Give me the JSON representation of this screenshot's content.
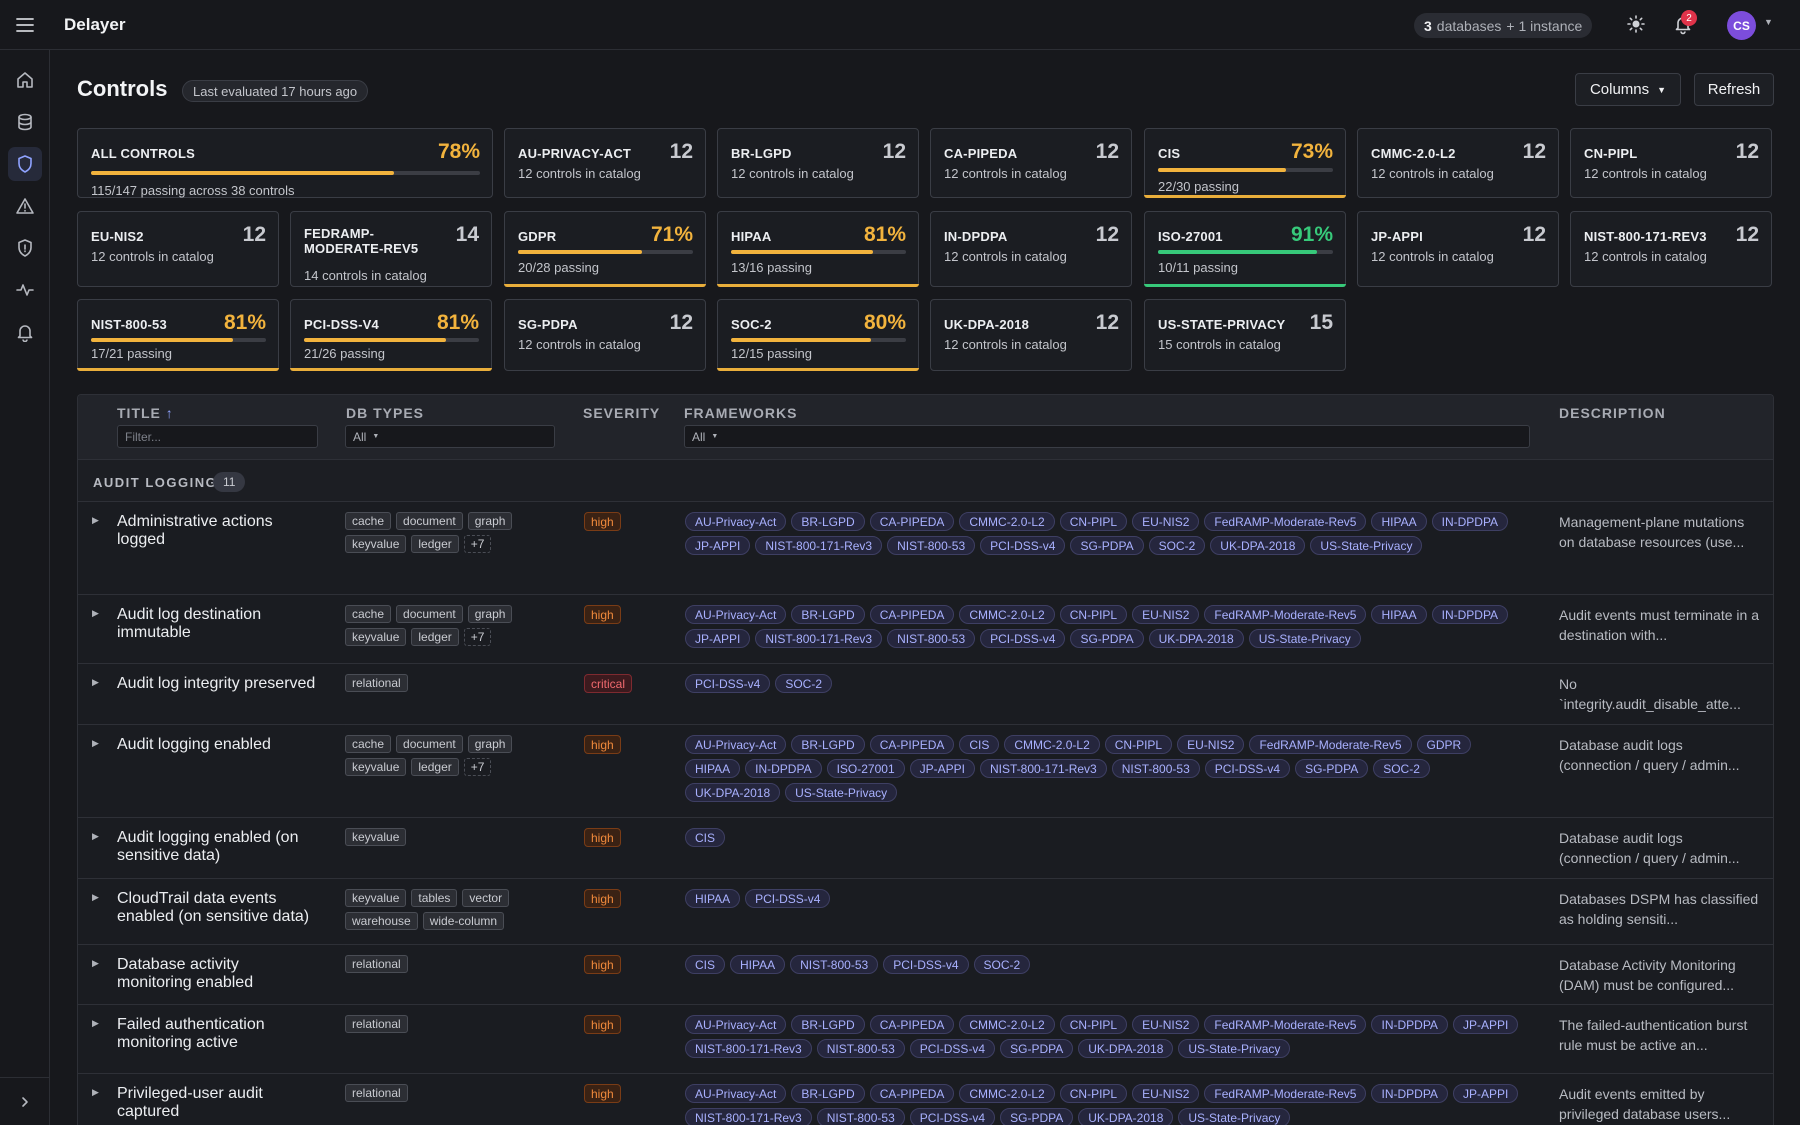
{
  "app": {
    "title": "Delayer"
  },
  "topbar": {
    "db_count": "3",
    "db_text": "databases",
    "instance_text": "+ 1 instance",
    "notification_count": "2",
    "avatar_initials": "CS"
  },
  "page": {
    "title": "Controls",
    "last_evaluated": "Last evaluated 17 hours ago",
    "columns_label": "Columns",
    "refresh_label": "Refresh"
  },
  "cards": [
    {
      "name": "ALL CONTROLS",
      "value": "78%",
      "sub": "115/147 passing across 38 controls",
      "progress": 0.78
    },
    {
      "name": "AU-PRIVACY-ACT",
      "value": "12",
      "sub": "12 controls in catalog"
    },
    {
      "name": "BR-LGPD",
      "value": "12",
      "sub": "12 controls in catalog"
    },
    {
      "name": "CA-PIPEDA",
      "value": "12",
      "sub": "12 controls in catalog"
    },
    {
      "name": "CIS",
      "value": "73%",
      "sub": "22/30 passing",
      "progress": 0.73
    },
    {
      "name": "CMMC-2.0-L2",
      "value": "12",
      "sub": "12 controls in catalog"
    },
    {
      "name": "CN-PIPL",
      "value": "12",
      "sub": "12 controls in catalog"
    },
    {
      "name": "EU-NIS2",
      "value": "12",
      "sub": "12 controls in catalog"
    },
    {
      "name": "FEDRAMP-\nMODERATE-REV5",
      "value": "14",
      "sub": "14 controls in catalog"
    },
    {
      "name": "GDPR",
      "value": "71%",
      "sub": "20/28 passing",
      "progress": 0.71
    },
    {
      "name": "HIPAA",
      "value": "81%",
      "sub": "13/16 passing",
      "progress": 0.81
    },
    {
      "name": "IN-DPDPA",
      "value": "12",
      "sub": "12 controls in catalog"
    },
    {
      "name": "ISO-27001",
      "value": "91%",
      "sub": "10/11 passing",
      "progress": 0.91
    },
    {
      "name": "JP-APPI",
      "value": "12",
      "sub": "12 controls in catalog"
    },
    {
      "name": "NIST-800-171-REV3",
      "value": "12",
      "sub": "12 controls in catalog"
    },
    {
      "name": "NIST-800-53",
      "value": "81%",
      "sub": "17/21 passing",
      "progress": 0.81
    },
    {
      "name": "PCI-DSS-V4",
      "value": "81%",
      "sub": "21/26 passing",
      "progress": 0.81
    },
    {
      "name": "SG-PDPA",
      "value": "12",
      "sub": "12 controls in catalog"
    },
    {
      "name": "SOC-2",
      "value": "80%",
      "sub": "12/15 passing",
      "progress": 0.8
    },
    {
      "name": "UK-DPA-2018",
      "value": "12",
      "sub": "12 controls in catalog"
    },
    {
      "name": "US-STATE-PRIVACY",
      "value": "15",
      "sub": "15 controls in catalog"
    }
  ],
  "table": {
    "headers": {
      "title": "TITLE",
      "sort_arrow": "↑",
      "db_types": "DB TYPES",
      "severity": "SEVERITY",
      "frameworks": "FRAMEWORKS",
      "description": "DESCRIPTION"
    },
    "filters": {
      "title_placeholder": "Filter...",
      "db_types": "All",
      "frameworks": "All"
    },
    "group": {
      "label": "AUDIT LOGGING",
      "count": "11"
    },
    "rows": [
      {
        "title": "Administrative actions logged",
        "db_types": [
          "cache",
          "document",
          "graph",
          "keyvalue",
          "ledger",
          "+7"
        ],
        "severity": "high",
        "frameworks": [
          "AU-Privacy-Act",
          "BR-LGPD",
          "CA-PIPEDA",
          "CMMC-2.0-L2",
          "CN-PIPL",
          "EU-NIS2",
          "FedRAMP-Moderate-Rev5",
          "HIPAA",
          "IN-DPDPA",
          "JP-APPI",
          "NIST-800-171-Rev3",
          "NIST-800-53",
          "PCI-DSS-v4",
          "SG-PDPA",
          "SOC-2",
          "UK-DPA-2018",
          "US-State-Privacy"
        ],
        "description": "Management-plane mutations on database resources (use..."
      },
      {
        "title": "Audit log destination immutable",
        "db_types": [
          "cache",
          "document",
          "graph",
          "keyvalue",
          "ledger",
          "+7"
        ],
        "severity": "high",
        "frameworks": [
          "AU-Privacy-Act",
          "BR-LGPD",
          "CA-PIPEDA",
          "CMMC-2.0-L2",
          "CN-PIPL",
          "EU-NIS2",
          "FedRAMP-Moderate-Rev5",
          "HIPAA",
          "IN-DPDPA",
          "JP-APPI",
          "NIST-800-171-Rev3",
          "NIST-800-53",
          "PCI-DSS-v4",
          "SG-PDPA",
          "UK-DPA-2018",
          "US-State-Privacy"
        ],
        "description": "Audit events must terminate in a destination with..."
      },
      {
        "title": "Audit log integrity preserved",
        "db_types": [
          "relational"
        ],
        "severity": "critical",
        "frameworks": [
          "PCI-DSS-v4",
          "SOC-2"
        ],
        "description": "No `integrity.audit_disable_atte..."
      },
      {
        "title": "Audit logging enabled",
        "db_types": [
          "cache",
          "document",
          "graph",
          "keyvalue",
          "ledger",
          "+7"
        ],
        "severity": "high",
        "frameworks": [
          "AU-Privacy-Act",
          "BR-LGPD",
          "CA-PIPEDA",
          "CIS",
          "CMMC-2.0-L2",
          "CN-PIPL",
          "EU-NIS2",
          "FedRAMP-Moderate-Rev5",
          "GDPR",
          "HIPAA",
          "IN-DPDPA",
          "ISO-27001",
          "JP-APPI",
          "NIST-800-171-Rev3",
          "NIST-800-53",
          "PCI-DSS-v4",
          "SG-PDPA",
          "SOC-2",
          "UK-DPA-2018",
          "US-State-Privacy"
        ],
        "description": "Database audit logs (connection / query / admin..."
      },
      {
        "title": "Audit logging enabled (on sensitive data)",
        "db_types": [
          "keyvalue"
        ],
        "severity": "high",
        "frameworks": [
          "CIS"
        ],
        "description": "Database audit logs (connection / query / admin..."
      },
      {
        "title": "CloudTrail data events enabled (on sensitive data)",
        "db_types": [
          "keyvalue",
          "tables",
          "vector",
          "warehouse",
          "wide-column"
        ],
        "severity": "high",
        "frameworks": [
          "HIPAA",
          "PCI-DSS-v4"
        ],
        "description": "Databases DSPM has classified as holding sensiti..."
      },
      {
        "title": "Database activity monitoring enabled",
        "db_types": [
          "relational"
        ],
        "severity": "high",
        "frameworks": [
          "CIS",
          "HIPAA",
          "NIST-800-53",
          "PCI-DSS-v4",
          "SOC-2"
        ],
        "description": "Database Activity Monitoring (DAM) must be configured..."
      },
      {
        "title": "Failed authentication monitoring active",
        "db_types": [
          "relational"
        ],
        "severity": "high",
        "frameworks": [
          "AU-Privacy-Act",
          "BR-LGPD",
          "CA-PIPEDA",
          "CMMC-2.0-L2",
          "CN-PIPL",
          "EU-NIS2",
          "FedRAMP-Moderate-Rev5",
          "IN-DPDPA",
          "JP-APPI",
          "NIST-800-171-Rev3",
          "NIST-800-53",
          "PCI-DSS-v4",
          "SG-PDPA",
          "UK-DPA-2018",
          "US-State-Privacy"
        ],
        "description": "The failed-authentication burst rule must be active an..."
      },
      {
        "title": "Privileged-user audit captured",
        "db_types": [
          "relational"
        ],
        "severity": "high",
        "frameworks": [
          "AU-Privacy-Act",
          "BR-LGPD",
          "CA-PIPEDA",
          "CMMC-2.0-L2",
          "CN-PIPL",
          "EU-NIS2",
          "FedRAMP-Moderate-Rev5",
          "IN-DPDPA",
          "JP-APPI",
          "NIST-800-171-Rev3",
          "NIST-800-53",
          "PCI-DSS-v4",
          "SG-PDPA",
          "UK-DPA-2018",
          "US-State-Privacy"
        ],
        "description": "Audit events emitted by privileged database users..."
      }
    ]
  },
  "icons": {
    "menu": "hamburger-icon",
    "theme": "sun-icon",
    "notifications": "bell-icon",
    "avatar_caret": "chevron-down-icon",
    "nav": [
      "home-icon",
      "database-icon",
      "shield-icon",
      "warning-icon",
      "shield-alert-icon",
      "activity-icon",
      "bell-icon"
    ],
    "collapse": "chevron-right-icon"
  },
  "colors": {
    "accent": "#8fa3ff",
    "pass_warn": "#f2b33d",
    "pass_good": "#37c97a",
    "severity_high": "#f08a3c",
    "severity_critical": "#f06a6e",
    "framework_tag": "#a9b1ff"
  }
}
